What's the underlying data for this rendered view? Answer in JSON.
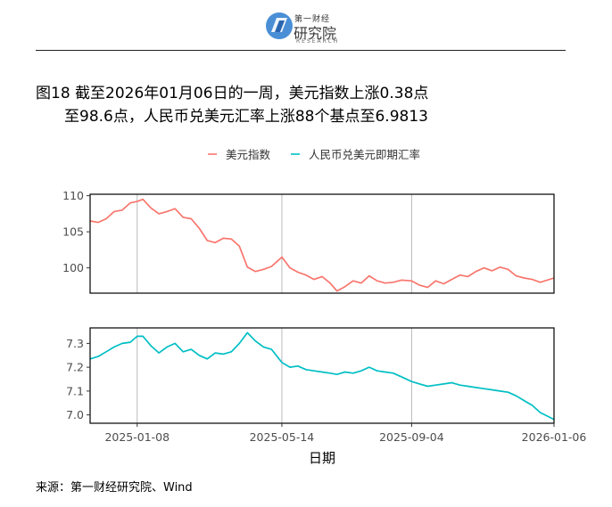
{
  "header": {
    "logo_top": "第一财经",
    "logo_main": "研究院",
    "logo_sub": "RESEARCH"
  },
  "title": {
    "line1": "图18  截至2026年01月06日的一周，美元指数上涨0.38点",
    "line2": "至98.6点，人民币兑美元汇率上涨88个基点至6.9813"
  },
  "source": "来源：第一财经研究院、Wind",
  "colors": {
    "usd_index": "#F8766D",
    "cny_rate": "#00BFC4",
    "grid": "#b3b3b3"
  },
  "chart_data": [
    {
      "type": "line",
      "title": "",
      "xlabel": "",
      "ylabel": "",
      "legend_position": "top",
      "grid": "vertical at x ticks",
      "xlim": [
        "2024-11-28",
        "2026-01-06"
      ],
      "ylim": [
        96.5,
        110.2
      ],
      "yticks": [
        100,
        105,
        110
      ],
      "xticks": [
        "2025-01-08",
        "2025-05-14",
        "2025-09-04",
        "2026-01-06"
      ],
      "series": [
        {
          "name": "美元指数",
          "x": [
            "2024-11-28",
            "2024-12-05",
            "2024-12-12",
            "2024-12-19",
            "2024-12-26",
            "2025-01-02",
            "2025-01-08",
            "2025-01-13",
            "2025-01-20",
            "2025-01-27",
            "2025-02-03",
            "2025-02-10",
            "2025-02-17",
            "2025-02-24",
            "2025-03-03",
            "2025-03-10",
            "2025-03-17",
            "2025-03-24",
            "2025-03-31",
            "2025-04-07",
            "2025-04-14",
            "2025-04-21",
            "2025-04-28",
            "2025-05-05",
            "2025-05-14",
            "2025-05-21",
            "2025-05-28",
            "2025-06-04",
            "2025-06-11",
            "2025-06-18",
            "2025-06-25",
            "2025-07-01",
            "2025-07-08",
            "2025-07-15",
            "2025-07-22",
            "2025-07-29",
            "2025-08-05",
            "2025-08-12",
            "2025-08-19",
            "2025-08-26",
            "2025-09-04",
            "2025-09-11",
            "2025-09-18",
            "2025-09-25",
            "2025-10-02",
            "2025-10-09",
            "2025-10-16",
            "2025-10-23",
            "2025-10-30",
            "2025-11-06",
            "2025-11-13",
            "2025-11-20",
            "2025-11-27",
            "2025-12-04",
            "2025-12-11",
            "2025-12-18",
            "2025-12-25",
            "2026-01-06"
          ],
          "values": [
            106.5,
            106.3,
            106.8,
            107.8,
            108.0,
            109.0,
            109.2,
            109.5,
            108.3,
            107.5,
            107.8,
            108.2,
            107.0,
            106.8,
            105.5,
            103.8,
            103.5,
            104.1,
            104.0,
            103.0,
            100.1,
            99.5,
            99.8,
            100.2,
            101.5,
            100.0,
            99.4,
            99.0,
            98.4,
            98.8,
            97.9,
            96.8,
            97.4,
            98.2,
            97.9,
            98.9,
            98.2,
            97.9,
            98.0,
            98.3,
            98.2,
            97.6,
            97.3,
            98.2,
            97.8,
            98.4,
            99.0,
            98.8,
            99.5,
            100.0,
            99.6,
            100.1,
            99.8,
            98.9,
            98.6,
            98.4,
            98.0,
            98.6
          ]
        }
      ]
    },
    {
      "type": "line",
      "title": "",
      "xlabel": "日期",
      "ylabel": "",
      "grid": "vertical at x ticks",
      "xlim": [
        "2024-11-28",
        "2026-01-06"
      ],
      "ylim": [
        6.965,
        7.365
      ],
      "yticks": [
        7.0,
        7.1,
        7.2,
        7.3
      ],
      "xticks": [
        "2025-01-08",
        "2025-05-14",
        "2025-09-04",
        "2026-01-06"
      ],
      "series": [
        {
          "name": "人民币兑美元即期汇率",
          "x": [
            "2024-11-28",
            "2024-12-05",
            "2024-12-12",
            "2024-12-19",
            "2024-12-26",
            "2025-01-02",
            "2025-01-08",
            "2025-01-13",
            "2025-01-20",
            "2025-01-27",
            "2025-02-03",
            "2025-02-10",
            "2025-02-17",
            "2025-02-24",
            "2025-03-03",
            "2025-03-10",
            "2025-03-17",
            "2025-03-24",
            "2025-03-31",
            "2025-04-07",
            "2025-04-14",
            "2025-04-21",
            "2025-04-28",
            "2025-05-05",
            "2025-05-14",
            "2025-05-21",
            "2025-05-28",
            "2025-06-04",
            "2025-06-11",
            "2025-06-18",
            "2025-06-25",
            "2025-07-01",
            "2025-07-08",
            "2025-07-15",
            "2025-07-22",
            "2025-07-29",
            "2025-08-05",
            "2025-08-12",
            "2025-08-19",
            "2025-08-26",
            "2025-09-04",
            "2025-09-11",
            "2025-09-18",
            "2025-09-25",
            "2025-10-02",
            "2025-10-09",
            "2025-10-16",
            "2025-10-23",
            "2025-10-30",
            "2025-11-06",
            "2025-11-13",
            "2025-11-20",
            "2025-11-27",
            "2025-12-04",
            "2025-12-11",
            "2025-12-18",
            "2025-12-25",
            "2026-01-06"
          ],
          "values": [
            7.235,
            7.245,
            7.265,
            7.285,
            7.3,
            7.305,
            7.33,
            7.33,
            7.29,
            7.26,
            7.285,
            7.3,
            7.265,
            7.275,
            7.25,
            7.235,
            7.26,
            7.255,
            7.265,
            7.3,
            7.345,
            7.31,
            7.285,
            7.275,
            7.22,
            7.2,
            7.205,
            7.19,
            7.185,
            7.18,
            7.175,
            7.17,
            7.18,
            7.175,
            7.185,
            7.2,
            7.185,
            7.18,
            7.175,
            7.16,
            7.14,
            7.13,
            7.12,
            7.125,
            7.13,
            7.135,
            7.125,
            7.12,
            7.115,
            7.11,
            7.105,
            7.1,
            7.095,
            7.08,
            7.06,
            7.04,
            7.01,
            6.981
          ]
        }
      ]
    }
  ]
}
